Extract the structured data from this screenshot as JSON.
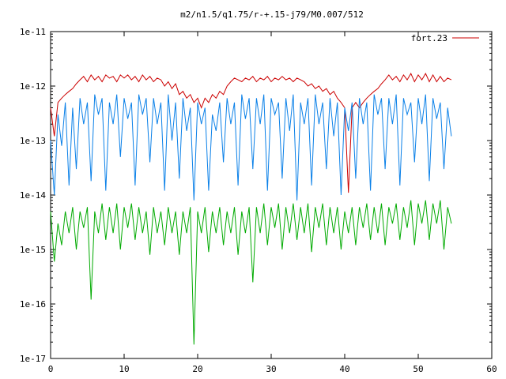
{
  "chart_data": {
    "type": "line",
    "title": "m2/n1.5/q1.75/r-+.15-j79/M0.007/512",
    "xlabel": "",
    "ylabel": "",
    "xlim": [
      0,
      60
    ],
    "ylim": [
      1e-17,
      1e-11
    ],
    "y_scale": "log",
    "grid": false,
    "legend_position": "top-right",
    "x_ticks": [
      0,
      10,
      20,
      30,
      40,
      50,
      60
    ],
    "x_tick_labels": [
      "0",
      "10",
      "20",
      "30",
      "40",
      "50",
      "60"
    ],
    "y_ticks": [
      1e-11,
      1e-12,
      1e-13,
      1e-14,
      1e-15,
      1e-16,
      1e-17
    ],
    "y_tick_labels": [
      "1e-11",
      "1e-12",
      "1e-13",
      "1e-14",
      "1e-15",
      "1e-16",
      "1e-17"
    ],
    "series": [
      {
        "name": "fort.23",
        "color": "#cc0000",
        "x": [
          0,
          0.5,
          1,
          1.5,
          2,
          2.5,
          3,
          3.5,
          4,
          4.5,
          5,
          5.5,
          6,
          6.5,
          7,
          7.5,
          8,
          8.5,
          9,
          9.5,
          10,
          10.5,
          11,
          11.5,
          12,
          12.5,
          13,
          13.5,
          14,
          14.5,
          15,
          15.5,
          16,
          16.5,
          17,
          17.5,
          18,
          18.5,
          19,
          19.5,
          20,
          20.5,
          21,
          21.5,
          22,
          22.5,
          23,
          23.5,
          24,
          24.5,
          25,
          25.5,
          26,
          26.5,
          27,
          27.5,
          28,
          28.5,
          29,
          29.5,
          30,
          30.5,
          31,
          31.5,
          32,
          32.5,
          33,
          33.5,
          34,
          34.5,
          35,
          35.5,
          36,
          36.5,
          37,
          37.5,
          38,
          38.5,
          39,
          39.5,
          40,
          40.5,
          41,
          41.5,
          42,
          42.5,
          43,
          43.5,
          44,
          44.5,
          45,
          45.5,
          46,
          46.5,
          47,
          47.5,
          48,
          48.5,
          49,
          49.5,
          50,
          50.5,
          51,
          51.5,
          52,
          52.5,
          53,
          53.5,
          54,
          54.5
        ],
        "y": [
          4e-13,
          1.2e-13,
          5e-13,
          6e-13,
          7e-13,
          8e-13,
          9e-13,
          1.1e-12,
          1.3e-12,
          1.5e-12,
          1.2e-12,
          1.6e-12,
          1.3e-12,
          1.5e-12,
          1.2e-12,
          1.6e-12,
          1.4e-12,
          1.5e-12,
          1.2e-12,
          1.6e-12,
          1.4e-12,
          1.6e-12,
          1.3e-12,
          1.5e-12,
          1.2e-12,
          1.6e-12,
          1.3e-12,
          1.5e-12,
          1.2e-12,
          1.4e-12,
          1.3e-12,
          1e-12,
          1.2e-12,
          9e-13,
          1.1e-12,
          7e-13,
          8e-13,
          6e-13,
          7e-13,
          5e-13,
          6e-13,
          4e-13,
          6e-13,
          5e-13,
          7e-13,
          6e-13,
          8e-13,
          7e-13,
          1e-12,
          1.2e-12,
          1.4e-12,
          1.3e-12,
          1.2e-12,
          1.4e-12,
          1.3e-12,
          1.5e-12,
          1.2e-12,
          1.4e-12,
          1.3e-12,
          1.5e-12,
          1.2e-12,
          1.4e-12,
          1.3e-12,
          1.5e-12,
          1.3e-12,
          1.4e-12,
          1.2e-12,
          1.4e-12,
          1.3e-12,
          1.2e-12,
          1e-12,
          1.1e-12,
          9e-13,
          1e-12,
          8e-13,
          9e-13,
          7e-13,
          8e-13,
          6e-13,
          5e-13,
          4e-13,
          1.1e-14,
          4e-13,
          5e-13,
          4e-13,
          5e-13,
          6e-13,
          7e-13,
          8e-13,
          9e-13,
          1.1e-12,
          1.3e-12,
          1.6e-12,
          1.3e-12,
          1.5e-12,
          1.2e-12,
          1.6e-12,
          1.3e-12,
          1.7e-12,
          1.2e-12,
          1.6e-12,
          1.3e-12,
          1.7e-12,
          1.2e-12,
          1.6e-12,
          1.2e-12,
          1.5e-12,
          1.2e-12,
          1.4e-12,
          1.3e-12
        ]
      },
      {
        "color": "#0a80e8",
        "x": [
          0,
          0.5,
          1,
          1.5,
          2,
          2.5,
          3,
          3.5,
          4,
          4.5,
          5,
          5.5,
          6,
          6.5,
          7,
          7.5,
          8,
          8.5,
          9,
          9.5,
          10,
          10.5,
          11,
          11.5,
          12,
          12.5,
          13,
          13.5,
          14,
          14.5,
          15,
          15.5,
          16,
          16.5,
          17,
          17.5,
          18,
          18.5,
          19,
          19.5,
          20,
          20.5,
          21,
          21.5,
          22,
          22.5,
          23,
          23.5,
          24,
          24.5,
          25,
          25.5,
          26,
          26.5,
          27,
          27.5,
          28,
          28.5,
          29,
          29.5,
          30,
          30.5,
          31,
          31.5,
          32,
          32.5,
          33,
          33.5,
          34,
          34.5,
          35,
          35.5,
          36,
          36.5,
          37,
          37.5,
          38,
          38.5,
          39,
          39.5,
          40,
          40.5,
          41,
          41.5,
          42,
          42.5,
          43,
          43.5,
          44,
          44.5,
          45,
          45.5,
          46,
          46.5,
          47,
          47.5,
          48,
          48.5,
          49,
          49.5,
          50,
          50.5,
          51,
          51.5,
          52,
          52.5,
          53,
          53.5,
          54,
          54.5
        ],
        "y": [
          1e-13,
          1e-14,
          3e-13,
          8e-14,
          5e-13,
          1.5e-14,
          4e-13,
          3e-14,
          6e-13,
          2e-13,
          5e-13,
          1.8e-14,
          7e-13,
          3e-13,
          6e-13,
          1.2e-14,
          5e-13,
          2e-13,
          7e-13,
          5e-14,
          6e-13,
          2.5e-13,
          5e-13,
          1.5e-14,
          7e-13,
          3e-13,
          6e-13,
          4e-14,
          6e-13,
          2e-13,
          5e-13,
          1.2e-14,
          7e-13,
          1e-13,
          5e-13,
          2e-14,
          6e-13,
          1.5e-13,
          4e-13,
          8e-15,
          5e-13,
          2e-13,
          4e-13,
          1.2e-14,
          3e-13,
          1.5e-13,
          5e-13,
          4e-14,
          6e-13,
          2e-13,
          5e-13,
          1.5e-14,
          7e-13,
          2.5e-13,
          6e-13,
          3e-14,
          6e-13,
          2e-13,
          7e-13,
          1.2e-14,
          6e-13,
          3e-13,
          5e-13,
          2e-14,
          6e-13,
          1.5e-13,
          7e-13,
          8e-15,
          5e-13,
          2e-13,
          6e-13,
          1.5e-14,
          7e-13,
          2e-13,
          5e-13,
          3e-14,
          6e-13,
          1.2e-13,
          5e-13,
          1e-14,
          4e-13,
          1.5e-13,
          5e-13,
          2e-14,
          6e-13,
          2e-13,
          5e-13,
          1.2e-14,
          7e-13,
          3e-13,
          6e-13,
          3e-14,
          6e-13,
          2e-13,
          7e-13,
          1.5e-14,
          6e-13,
          3e-13,
          5e-13,
          4e-14,
          6e-13,
          2e-13,
          7e-13,
          1.8e-14,
          6e-13,
          2.5e-13,
          5e-13,
          3e-14,
          4e-13,
          1.2e-13
        ]
      },
      {
        "color": "#00aa00",
        "x": [
          0,
          0.5,
          1,
          1.5,
          2,
          2.5,
          3,
          3.5,
          4,
          4.5,
          5,
          5.5,
          6,
          6.5,
          7,
          7.5,
          8,
          8.5,
          9,
          9.5,
          10,
          10.5,
          11,
          11.5,
          12,
          12.5,
          13,
          13.5,
          14,
          14.5,
          15,
          15.5,
          16,
          16.5,
          17,
          17.5,
          18,
          18.5,
          19,
          19.5,
          20,
          20.5,
          21,
          21.5,
          22,
          22.5,
          23,
          23.5,
          24,
          24.5,
          25,
          25.5,
          26,
          26.5,
          27,
          27.5,
          28,
          28.5,
          29,
          29.5,
          30,
          30.5,
          31,
          31.5,
          32,
          32.5,
          33,
          33.5,
          34,
          34.5,
          35,
          35.5,
          36,
          36.5,
          37,
          37.5,
          38,
          38.5,
          39,
          39.5,
          40,
          40.5,
          41,
          41.5,
          42,
          42.5,
          43,
          43.5,
          44,
          44.5,
          45,
          45.5,
          46,
          46.5,
          47,
          47.5,
          48,
          48.5,
          49,
          49.5,
          50,
          50.5,
          51,
          51.5,
          52,
          52.5,
          53,
          53.5,
          54,
          54.5
        ],
        "y": [
          5e-15,
          6e-16,
          3e-15,
          1.2e-15,
          5e-15,
          2e-15,
          6e-15,
          1e-15,
          5e-15,
          2.5e-15,
          6e-15,
          1.2e-16,
          5e-15,
          2e-15,
          7e-15,
          1.5e-15,
          6e-15,
          2e-15,
          7e-15,
          1e-15,
          6e-15,
          2.5e-15,
          7e-15,
          1.5e-15,
          6e-15,
          2e-15,
          5e-15,
          8e-16,
          6e-15,
          2e-15,
          5e-15,
          1.2e-15,
          6e-15,
          2e-15,
          5e-15,
          8e-16,
          5e-15,
          2e-15,
          6e-15,
          1.8e-17,
          5e-15,
          2e-15,
          6e-15,
          9e-16,
          5e-15,
          2e-15,
          6e-15,
          1.2e-15,
          5e-15,
          2e-15,
          6e-15,
          8e-16,
          5e-15,
          2e-15,
          6e-15,
          2.5e-16,
          6e-15,
          2e-15,
          7e-15,
          1.2e-15,
          6e-15,
          2.5e-15,
          7e-15,
          1e-15,
          6e-15,
          2e-15,
          7e-15,
          1.5e-15,
          6e-15,
          2e-15,
          7e-15,
          9e-16,
          6e-15,
          2.5e-15,
          7e-15,
          1.2e-15,
          6e-15,
          2e-15,
          6e-15,
          1e-15,
          5e-15,
          2e-15,
          6e-15,
          1.2e-15,
          6e-15,
          2.5e-15,
          7e-15,
          1.5e-15,
          6e-15,
          2e-15,
          7e-15,
          1.2e-15,
          6e-15,
          3e-15,
          7e-15,
          1.5e-15,
          6e-15,
          2.5e-15,
          8e-15,
          1.2e-15,
          7e-15,
          3e-15,
          8e-15,
          1.5e-15,
          7e-15,
          3e-15,
          8e-15,
          1e-15,
          6e-15,
          3e-15
        ]
      }
    ]
  }
}
